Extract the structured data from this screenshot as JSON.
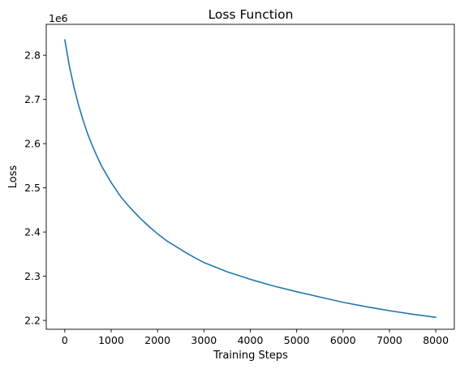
{
  "chart_data": {
    "type": "line",
    "title": "Loss Function",
    "xlabel": "Training Steps",
    "ylabel": "Loss",
    "y_offset_text": "1e6",
    "xlim": [
      -400,
      8400
    ],
    "ylim": [
      2.18,
      2.87
    ],
    "y_scale_factor": 1000000,
    "grid": false,
    "legend": "none",
    "line_color": "#1f77b4",
    "x_ticks": [
      0,
      1000,
      2000,
      3000,
      4000,
      5000,
      6000,
      7000,
      8000
    ],
    "x_tick_labels": [
      "0",
      "1000",
      "2000",
      "3000",
      "4000",
      "5000",
      "6000",
      "7000",
      "8000"
    ],
    "y_ticks": [
      2.2,
      2.3,
      2.4,
      2.5,
      2.6,
      2.7,
      2.8
    ],
    "y_tick_labels": [
      "2.2",
      "2.3",
      "2.4",
      "2.5",
      "2.6",
      "2.7",
      "2.8"
    ],
    "series": [
      {
        "x": [
          0,
          100,
          200,
          300,
          400,
          500,
          600,
          700,
          800,
          1000,
          1200,
          1400,
          1600,
          1800,
          2000,
          2200,
          2400,
          2600,
          2800,
          3000,
          3500,
          4000,
          4500,
          5000,
          5500,
          6000,
          6500,
          7000,
          7500,
          8000
        ],
        "y": [
          2.835,
          2.775,
          2.727,
          2.686,
          2.651,
          2.62,
          2.594,
          2.57,
          2.548,
          2.512,
          2.481,
          2.456,
          2.434,
          2.414,
          2.396,
          2.38,
          2.367,
          2.354,
          2.342,
          2.331,
          2.31,
          2.293,
          2.278,
          2.265,
          2.253,
          2.241,
          2.231,
          2.222,
          2.214,
          2.207
        ]
      }
    ]
  }
}
